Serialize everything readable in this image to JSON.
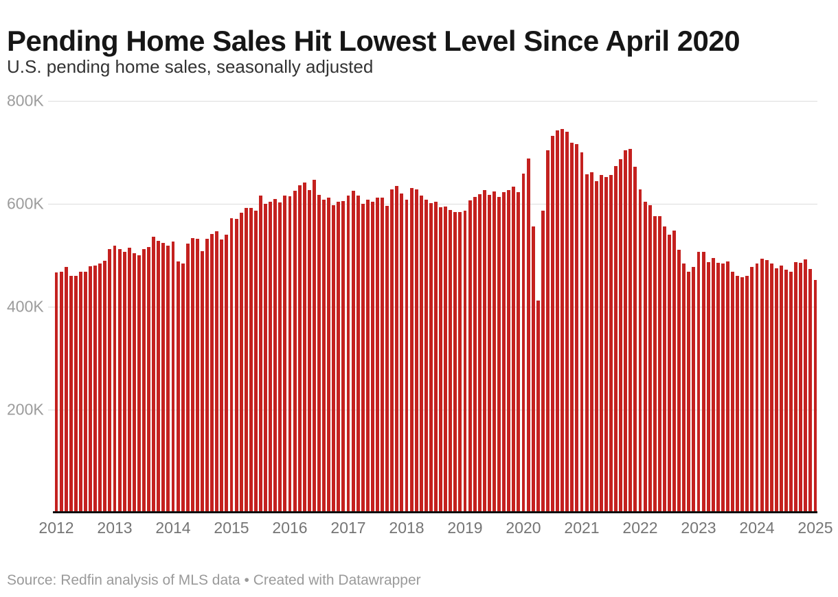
{
  "header": {
    "title": "Pending Home Sales Hit Lowest Level Since April 2020",
    "subtitle": "U.S. pending home sales, seasonally adjusted"
  },
  "footer": {
    "text": "Source: Redfin analysis of MLS data • Created with Datawrapper"
  },
  "chart_data": {
    "type": "bar",
    "title": "Pending Home Sales Hit Lowest Level Since April 2020",
    "subtitle": "U.S. pending home sales, seasonally adjusted",
    "unit": "thousands of homes (K)",
    "frequency": "monthly",
    "x_start": "2012-01",
    "x_end": "2025-01",
    "x_tick_labels": [
      "2012",
      "2013",
      "2014",
      "2015",
      "2016",
      "2017",
      "2018",
      "2019",
      "2020",
      "2021",
      "2022",
      "2023",
      "2024",
      "2025"
    ],
    "y_axis": {
      "ylim": [
        0,
        800
      ],
      "gridlines": true,
      "ticks": [
        {
          "label": "800K",
          "value": 800
        },
        {
          "label": "600K",
          "value": 600
        },
        {
          "label": "400K",
          "value": 400
        },
        {
          "label": "200K",
          "value": 200
        }
      ]
    },
    "legend": "none",
    "series": [
      {
        "year": 2012,
        "values": [
          466,
          468,
          477,
          460,
          460,
          467,
          468,
          478,
          480,
          484,
          489,
          511
        ]
      },
      {
        "year": 2013,
        "values": [
          518,
          512,
          506,
          514,
          504,
          499,
          512,
          516,
          535,
          527,
          524,
          518
        ]
      },
      {
        "year": 2014,
        "values": [
          526,
          487,
          484,
          522,
          533,
          532,
          507,
          531,
          541,
          546,
          530,
          539
        ]
      },
      {
        "year": 2015,
        "values": [
          571,
          570,
          582,
          592,
          592,
          586,
          615,
          600,
          604,
          609,
          602,
          615
        ]
      },
      {
        "year": 2016,
        "values": [
          614,
          625,
          636,
          641,
          626,
          646,
          617,
          608,
          612,
          597,
          604,
          605
        ]
      },
      {
        "year": 2017,
        "values": [
          616,
          625,
          616,
          600,
          607,
          603,
          611,
          611,
          596,
          628,
          634,
          620
        ]
      },
      {
        "year": 2018,
        "values": [
          608,
          630,
          628,
          616,
          607,
          601,
          604,
          593,
          594,
          587,
          583,
          584
        ]
      },
      {
        "year": 2019,
        "values": [
          586,
          606,
          613,
          618,
          626,
          617,
          624,
          613,
          622,
          626,
          633,
          622
        ]
      },
      {
        "year": 2020,
        "values": [
          658,
          687,
          555,
          412,
          586,
          704,
          732,
          742,
          745,
          740,
          718,
          716
        ]
      },
      {
        "year": 2021,
        "values": [
          700,
          657,
          661,
          644,
          655,
          651,
          656,
          673,
          686,
          704,
          706,
          672
        ]
      },
      {
        "year": 2022,
        "values": [
          628,
          604,
          597,
          576,
          576,
          555,
          540,
          547,
          510,
          484,
          468,
          477
        ]
      },
      {
        "year": 2023,
        "values": [
          506,
          506,
          486,
          494,
          485,
          483,
          488,
          467,
          459,
          457,
          460,
          477
        ]
      },
      {
        "year": 2024,
        "values": [
          484,
          493,
          490,
          484,
          474,
          479,
          471,
          467,
          486,
          485,
          492,
          473
        ]
      },
      {
        "year": 2025,
        "values": [
          452
        ]
      }
    ],
    "colors": {
      "bar": "#c4211f",
      "gridline": "#dcdcdc",
      "axis_line": "#0f0f0f",
      "y_tick_text": "#9c9c9c",
      "x_tick_text": "#757575",
      "title_text": "#161616",
      "subtitle_text": "#333333",
      "footer_text": "#9a9a9a"
    }
  }
}
